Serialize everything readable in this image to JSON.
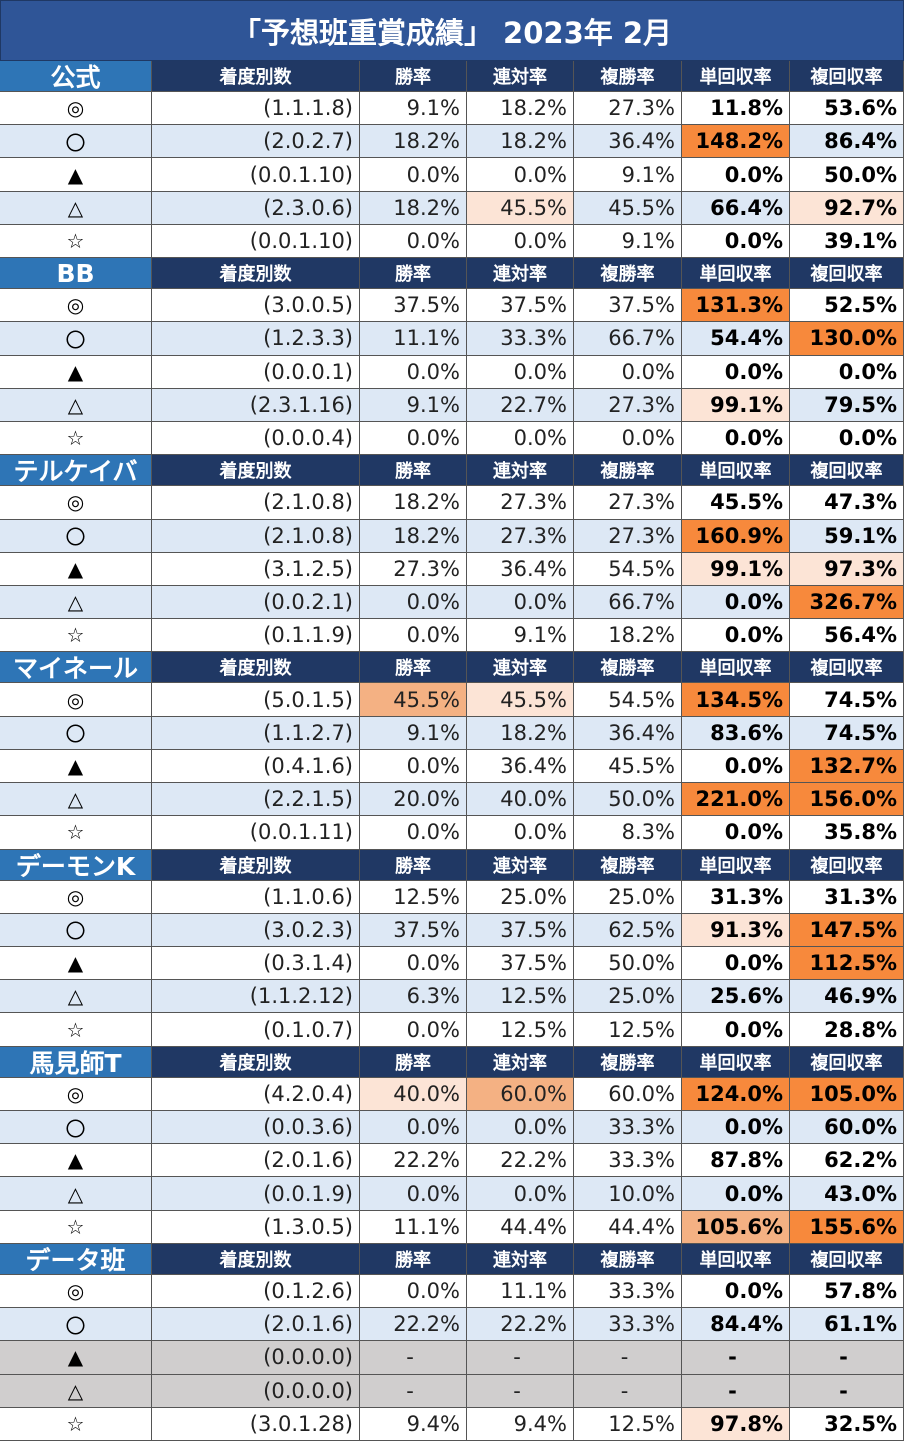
{
  "title": "「予想班重賞成績」 2023年 2月",
  "columns": [
    "着度別数",
    "勝率",
    "連対率",
    "複勝率",
    "単回収率",
    "複回収率"
  ],
  "sections": [
    {
      "name": "公式",
      "rows": [
        {
          "mark": "◎",
          "record": "(1.1.1.8)",
          "rates": [
            "9.1%",
            "18.2%",
            "27.3%",
            "11.8%",
            "53.6%"
          ]
        },
        {
          "mark": "〇",
          "record": "(2.0.2.7)",
          "rates": [
            "18.2%",
            "18.2%",
            "36.4%",
            "148.2%",
            "86.4%"
          ],
          "highlight": {
            "3": "#f7893c"
          }
        },
        {
          "mark": "▲",
          "record": "(0.0.1.10)",
          "rates": [
            "0.0%",
            "0.0%",
            "9.1%",
            "0.0%",
            "50.0%"
          ]
        },
        {
          "mark": "△",
          "record": "(2.3.0.6)",
          "rates": [
            "18.2%",
            "45.5%",
            "45.5%",
            "66.4%",
            "92.7%"
          ],
          "highlight": {
            "1": "#fce4d6",
            "4": "#fce4d6"
          }
        },
        {
          "mark": "☆",
          "record": "(0.0.1.10)",
          "rates": [
            "0.0%",
            "0.0%",
            "9.1%",
            "0.0%",
            "39.1%"
          ]
        }
      ]
    },
    {
      "name": "BB",
      "rows": [
        {
          "mark": "◎",
          "record": "(3.0.0.5)",
          "rates": [
            "37.5%",
            "37.5%",
            "37.5%",
            "131.3%",
            "52.5%"
          ],
          "highlight": {
            "3": "#f7893c"
          }
        },
        {
          "mark": "〇",
          "record": "(1.2.3.3)",
          "rates": [
            "11.1%",
            "33.3%",
            "66.7%",
            "54.4%",
            "130.0%"
          ],
          "highlight": {
            "4": "#f7893c"
          }
        },
        {
          "mark": "▲",
          "record": "(0.0.0.1)",
          "rates": [
            "0.0%",
            "0.0%",
            "0.0%",
            "0.0%",
            "0.0%"
          ]
        },
        {
          "mark": "△",
          "record": "(2.3.1.16)",
          "rates": [
            "9.1%",
            "22.7%",
            "27.3%",
            "99.1%",
            "79.5%"
          ],
          "highlight": {
            "3": "#fce4d6"
          }
        },
        {
          "mark": "☆",
          "record": "(0.0.0.4)",
          "rates": [
            "0.0%",
            "0.0%",
            "0.0%",
            "0.0%",
            "0.0%"
          ]
        }
      ]
    },
    {
      "name": "テルケイバ",
      "rows": [
        {
          "mark": "◎",
          "record": "(2.1.0.8)",
          "rates": [
            "18.2%",
            "27.3%",
            "27.3%",
            "45.5%",
            "47.3%"
          ]
        },
        {
          "mark": "〇",
          "record": "(2.1.0.8)",
          "rates": [
            "18.2%",
            "27.3%",
            "27.3%",
            "160.9%",
            "59.1%"
          ],
          "highlight": {
            "3": "#f7893c"
          }
        },
        {
          "mark": "▲",
          "record": "(3.1.2.5)",
          "rates": [
            "27.3%",
            "36.4%",
            "54.5%",
            "99.1%",
            "97.3%"
          ],
          "highlight": {
            "3": "#fce4d6",
            "4": "#fce4d6"
          }
        },
        {
          "mark": "△",
          "record": "(0.0.2.1)",
          "rates": [
            "0.0%",
            "0.0%",
            "66.7%",
            "0.0%",
            "326.7%"
          ],
          "highlight": {
            "4": "#f7893c"
          }
        },
        {
          "mark": "☆",
          "record": "(0.1.1.9)",
          "rates": [
            "0.0%",
            "9.1%",
            "18.2%",
            "0.0%",
            "56.4%"
          ]
        }
      ]
    },
    {
      "name": "マイネール",
      "rows": [
        {
          "mark": "◎",
          "record": "(5.0.1.5)",
          "rates": [
            "45.5%",
            "45.5%",
            "54.5%",
            "134.5%",
            "74.5%"
          ],
          "highlight": {
            "0": "#f4b183",
            "1": "#fce4d6",
            "3": "#f7893c"
          }
        },
        {
          "mark": "〇",
          "record": "(1.1.2.7)",
          "rates": [
            "9.1%",
            "18.2%",
            "36.4%",
            "83.6%",
            "74.5%"
          ]
        },
        {
          "mark": "▲",
          "record": "(0.4.1.6)",
          "rates": [
            "0.0%",
            "36.4%",
            "45.5%",
            "0.0%",
            "132.7%"
          ],
          "highlight": {
            "4": "#f7893c"
          }
        },
        {
          "mark": "△",
          "record": "(2.2.1.5)",
          "rates": [
            "20.0%",
            "40.0%",
            "50.0%",
            "221.0%",
            "156.0%"
          ],
          "highlight": {
            "3": "#f7893c",
            "4": "#f7893c"
          }
        },
        {
          "mark": "☆",
          "record": "(0.0.1.11)",
          "rates": [
            "0.0%",
            "0.0%",
            "8.3%",
            "0.0%",
            "35.8%"
          ]
        }
      ]
    },
    {
      "name": "デーモンK",
      "rows": [
        {
          "mark": "◎",
          "record": "(1.1.0.6)",
          "rates": [
            "12.5%",
            "25.0%",
            "25.0%",
            "31.3%",
            "31.3%"
          ]
        },
        {
          "mark": "〇",
          "record": "(3.0.2.3)",
          "rates": [
            "37.5%",
            "37.5%",
            "62.5%",
            "91.3%",
            "147.5%"
          ],
          "highlight": {
            "3": "#fce4d6",
            "4": "#f7893c"
          }
        },
        {
          "mark": "▲",
          "record": "(0.3.1.4)",
          "rates": [
            "0.0%",
            "37.5%",
            "50.0%",
            "0.0%",
            "112.5%"
          ],
          "highlight": {
            "4": "#f7893c"
          }
        },
        {
          "mark": "△",
          "record": "(1.1.2.12)",
          "rates": [
            "6.3%",
            "12.5%",
            "25.0%",
            "25.6%",
            "46.9%"
          ]
        },
        {
          "mark": "☆",
          "record": "(0.1.0.7)",
          "rates": [
            "0.0%",
            "12.5%",
            "12.5%",
            "0.0%",
            "28.8%"
          ]
        }
      ]
    },
    {
      "name": "馬見師T",
      "rows": [
        {
          "mark": "◎",
          "record": "(4.2.0.4)",
          "rates": [
            "40.0%",
            "60.0%",
            "60.0%",
            "124.0%",
            "105.0%"
          ],
          "highlight": {
            "0": "#fce4d6",
            "1": "#f4b183",
            "3": "#f7893c",
            "4": "#f7893c"
          }
        },
        {
          "mark": "〇",
          "record": "(0.0.3.6)",
          "rates": [
            "0.0%",
            "0.0%",
            "33.3%",
            "0.0%",
            "60.0%"
          ]
        },
        {
          "mark": "▲",
          "record": "(2.0.1.6)",
          "rates": [
            "22.2%",
            "22.2%",
            "33.3%",
            "87.8%",
            "62.2%"
          ]
        },
        {
          "mark": "△",
          "record": "(0.0.1.9)",
          "rates": [
            "0.0%",
            "0.0%",
            "10.0%",
            "0.0%",
            "43.0%"
          ]
        },
        {
          "mark": "☆",
          "record": "(1.3.0.5)",
          "rates": [
            "11.1%",
            "44.4%",
            "44.4%",
            "105.6%",
            "155.6%"
          ],
          "highlight": {
            "3": "#f4b183",
            "4": "#f7893c"
          }
        }
      ]
    },
    {
      "name": "データ班",
      "rows": [
        {
          "mark": "◎",
          "record": "(0.1.2.6)",
          "rates": [
            "0.0%",
            "11.1%",
            "33.3%",
            "0.0%",
            "57.8%"
          ]
        },
        {
          "mark": "〇",
          "record": "(2.0.1.6)",
          "rates": [
            "22.2%",
            "22.2%",
            "33.3%",
            "84.4%",
            "61.1%"
          ]
        },
        {
          "mark": "▲",
          "record": "(0.0.0.0)",
          "rates": [
            "-",
            "-",
            "-",
            "-",
            "-"
          ],
          "row_fill": "#d0cece"
        },
        {
          "mark": "△",
          "record": "(0.0.0.0)",
          "rates": [
            "-",
            "-",
            "-",
            "-",
            "-"
          ],
          "row_fill": "#d0cece"
        },
        {
          "mark": "☆",
          "record": "(3.0.1.28)",
          "rates": [
            "9.4%",
            "9.4%",
            "12.5%",
            "97.8%",
            "32.5%"
          ],
          "highlight": {
            "3": "#fce4d6"
          }
        }
      ]
    }
  ]
}
